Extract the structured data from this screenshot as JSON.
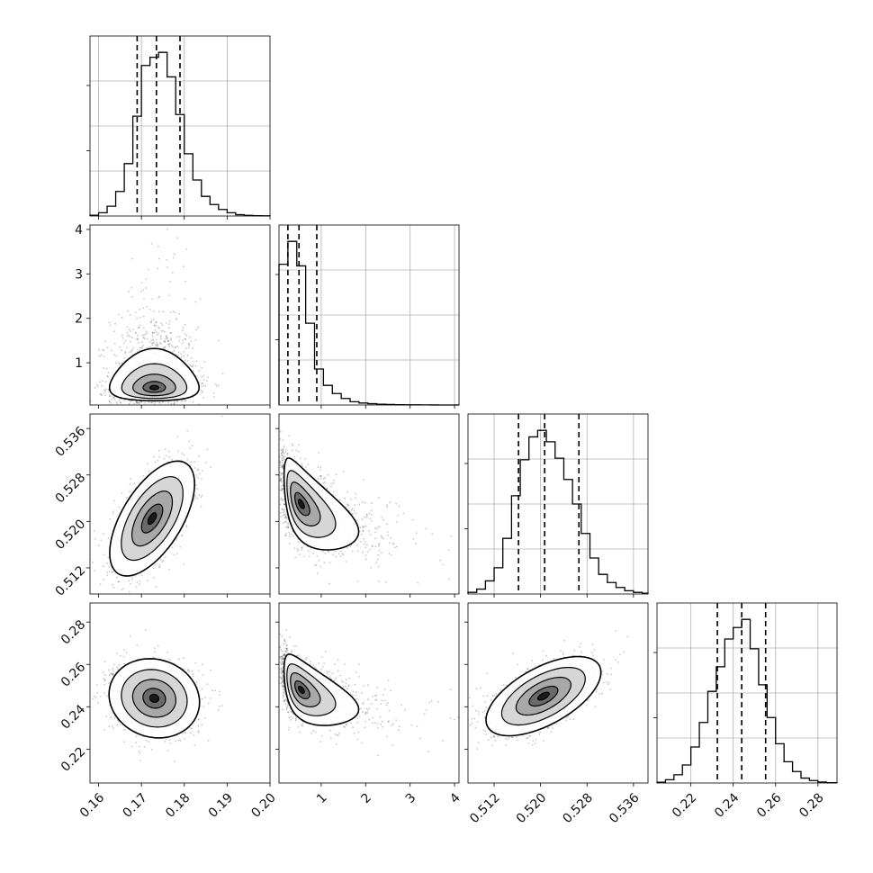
{
  "chart_data": {
    "type": "corner",
    "parameters": [
      {
        "id": "p1",
        "range": [
          0.158,
          0.2
        ],
        "ticks": [
          0.16,
          0.17,
          0.18,
          0.19,
          0.2
        ],
        "tick_labels": [
          "0.16",
          "0.17",
          "0.18",
          "0.19",
          "0.20"
        ],
        "quantiles": [
          0.169,
          0.1735,
          0.179
        ]
      },
      {
        "id": "p2",
        "range": [
          0.05,
          4.1
        ],
        "ticks": [
          1,
          2,
          3,
          4
        ],
        "tick_labels": [
          "1",
          "2",
          "3",
          "4"
        ],
        "quantiles": [
          0.25,
          0.5,
          0.9
        ]
      },
      {
        "id": "p3",
        "range": [
          0.5075,
          0.5385
        ],
        "ticks": [
          0.512,
          0.52,
          0.528,
          0.536
        ],
        "tick_labels": [
          "0.512",
          "0.520",
          "0.528",
          "0.536"
        ],
        "quantiles": [
          0.5162,
          0.5207,
          0.5266
        ]
      },
      {
        "id": "p4",
        "range": [
          0.204,
          0.289
        ],
        "ticks": [
          0.22,
          0.24,
          0.26,
          0.28
        ],
        "tick_labels": [
          "0.22",
          "0.24",
          "0.26",
          "0.28"
        ],
        "quantiles": [
          0.2325,
          0.244,
          0.2553
        ]
      }
    ],
    "histograms": [
      {
        "param": "p1",
        "edges": [
          0.158,
          0.16,
          0.162,
          0.164,
          0.166,
          0.168,
          0.17,
          0.172,
          0.174,
          0.176,
          0.178,
          0.18,
          0.182,
          0.184,
          0.186,
          0.188,
          0.19,
          0.192,
          0.194,
          0.196,
          0.198,
          0.2
        ],
        "counts": [
          0.005,
          0.02,
          0.06,
          0.15,
          0.32,
          0.61,
          0.92,
          0.97,
          1.0,
          0.85,
          0.62,
          0.38,
          0.22,
          0.12,
          0.07,
          0.04,
          0.02,
          0.008,
          0.004,
          0.002,
          0.001
        ]
      },
      {
        "param": "p2",
        "edges": [
          0.05,
          0.25,
          0.45,
          0.65,
          0.85,
          1.05,
          1.25,
          1.45,
          1.65,
          1.85,
          2.05,
          2.25,
          2.45,
          2.65,
          2.85,
          3.05,
          3.25,
          3.45,
          3.65,
          3.85,
          4.1
        ],
        "counts": [
          0.86,
          1.0,
          0.85,
          0.5,
          0.22,
          0.12,
          0.07,
          0.04,
          0.02,
          0.012,
          0.008,
          0.005,
          0.003,
          0.002,
          0.001,
          0.001,
          0.0005,
          0.0003,
          0.0002,
          0.0001
        ]
      },
      {
        "param": "p3",
        "edges": [
          0.5075,
          0.509,
          0.5105,
          0.512,
          0.5135,
          0.515,
          0.5165,
          0.518,
          0.5195,
          0.521,
          0.5225,
          0.524,
          0.5255,
          0.527,
          0.5285,
          0.53,
          0.5315,
          0.533,
          0.5345,
          0.536,
          0.5375,
          0.5385
        ],
        "counts": [
          0.01,
          0.03,
          0.08,
          0.16,
          0.34,
          0.6,
          0.82,
          0.96,
          1.0,
          0.93,
          0.83,
          0.7,
          0.55,
          0.37,
          0.22,
          0.12,
          0.07,
          0.04,
          0.02,
          0.01,
          0.005
        ]
      },
      {
        "param": "p4",
        "edges": [
          0.204,
          0.208,
          0.212,
          0.216,
          0.22,
          0.224,
          0.228,
          0.232,
          0.236,
          0.24,
          0.244,
          0.248,
          0.252,
          0.256,
          0.26,
          0.264,
          0.268,
          0.272,
          0.276,
          0.28,
          0.284,
          0.289
        ],
        "counts": [
          0.005,
          0.02,
          0.05,
          0.11,
          0.22,
          0.37,
          0.56,
          0.71,
          0.88,
          0.95,
          1.0,
          0.82,
          0.6,
          0.4,
          0.24,
          0.13,
          0.07,
          0.03,
          0.015,
          0.006,
          0.002
        ]
      }
    ],
    "joint_distributions": [
      {
        "x": "p1",
        "y": "p2",
        "mean": [
          0.173,
          0.55
        ],
        "sd": [
          0.005,
          0.45
        ],
        "rho": 0.0,
        "log_y": true
      },
      {
        "x": "p1",
        "y": "p3",
        "mean": [
          0.1725,
          0.5205
        ],
        "sd": [
          0.0045,
          0.0045
        ],
        "rho": 0.6,
        "log_y": false
      },
      {
        "x": "p2",
        "y": "p3",
        "mean": [
          0.55,
          0.523
        ],
        "sd": [
          0.45,
          0.004
        ],
        "rho": -0.6,
        "log_x": true
      },
      {
        "x": "p1",
        "y": "p4",
        "mean": [
          0.173,
          0.244
        ],
        "sd": [
          0.0048,
          0.0085
        ],
        "rho": -0.1
      },
      {
        "x": "p2",
        "y": "p4",
        "mean": [
          0.55,
          0.248
        ],
        "sd": [
          0.45,
          0.0085
        ],
        "rho": -0.55,
        "log_x": true
      },
      {
        "x": "p3",
        "y": "p4",
        "mean": [
          0.5205,
          0.245
        ],
        "sd": [
          0.0045,
          0.0085
        ],
        "rho": 0.6
      }
    ],
    "grid": true,
    "quantile_style": "dashed"
  }
}
